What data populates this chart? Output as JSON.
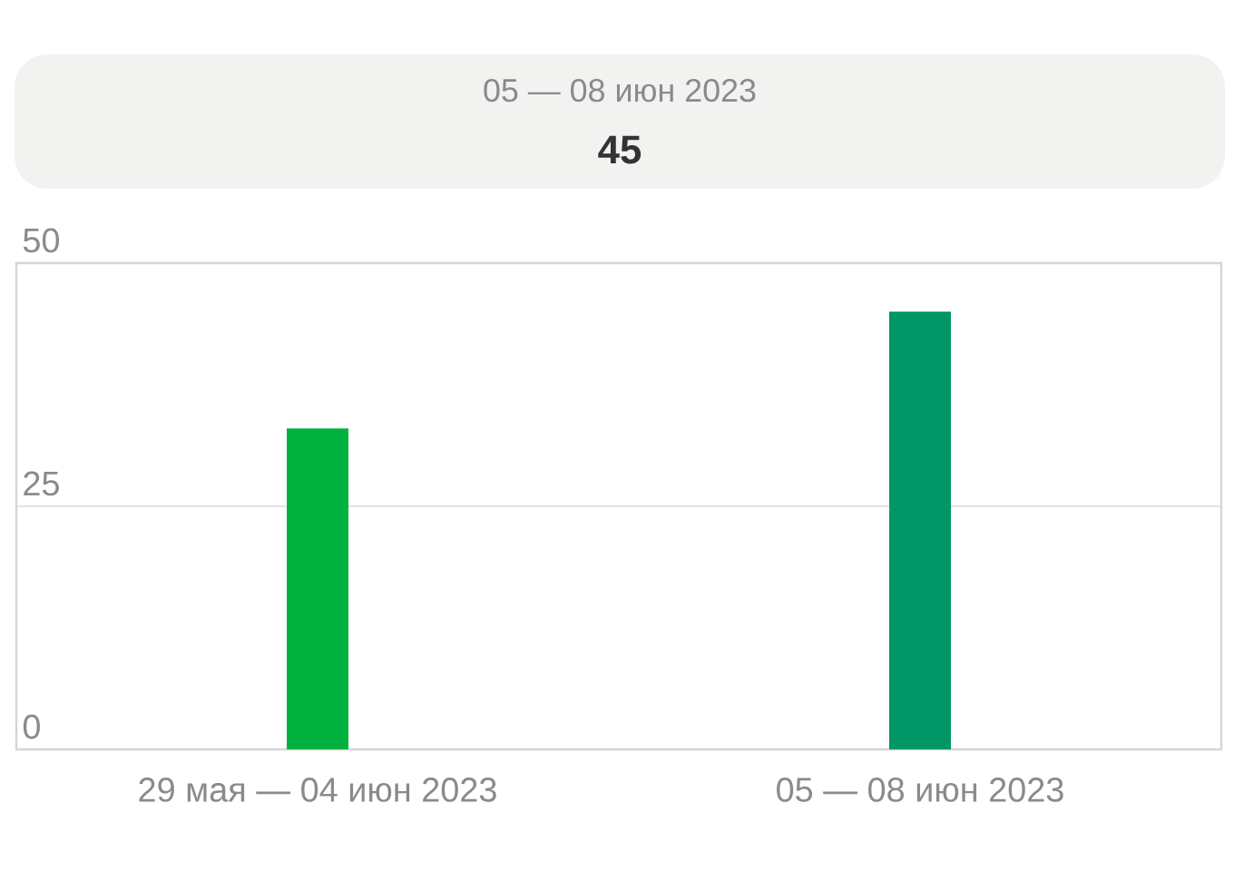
{
  "chart_data": {
    "type": "bar",
    "title": "05 — 08 июн 2023",
    "subtitle": "45",
    "categories": [
      "29 мая — 04 июн 2023",
      "05 — 08 июн 2023"
    ],
    "values": [
      33,
      45
    ],
    "colors": [
      "#00b140",
      "#009665"
    ],
    "ylim": [
      0,
      50
    ],
    "yticks": [
      0,
      25,
      50
    ],
    "grid": "y"
  }
}
